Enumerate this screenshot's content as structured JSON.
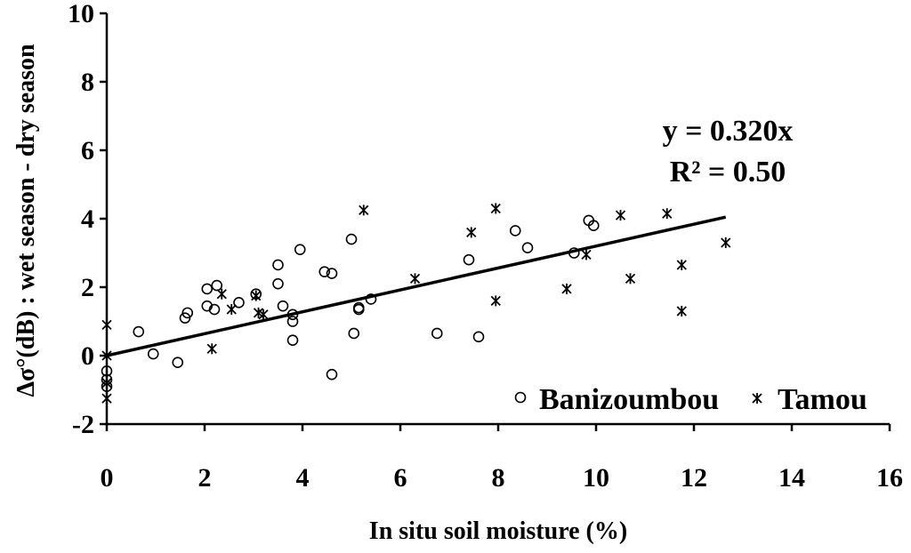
{
  "chart_data": {
    "type": "scatter",
    "title": "",
    "xlabel": "In situ soil moisture (%)",
    "ylabel": "Δσ°(dB) : wet season - dry season",
    "xlim": [
      0,
      16
    ],
    "ylim": [
      -2,
      10
    ],
    "x_ticks": [
      0,
      2,
      4,
      6,
      8,
      10,
      12,
      14,
      16
    ],
    "y_ticks": [
      -2,
      0,
      2,
      4,
      6,
      8,
      10
    ],
    "grid": false,
    "legend_position": "bottom-right",
    "series": [
      {
        "name": "Banizoumbou",
        "marker": "open-circle",
        "points": [
          [
            0,
            -0.45
          ],
          [
            0,
            -0.7
          ],
          [
            0,
            -0.9
          ],
          [
            0.65,
            0.7
          ],
          [
            0.95,
            0.05
          ],
          [
            1.45,
            -0.2
          ],
          [
            1.6,
            1.1
          ],
          [
            1.65,
            1.25
          ],
          [
            2.05,
            1.95
          ],
          [
            2.05,
            1.45
          ],
          [
            2.2,
            1.35
          ],
          [
            2.25,
            2.05
          ],
          [
            2.7,
            1.55
          ],
          [
            3.05,
            1.8
          ],
          [
            3.5,
            2.65
          ],
          [
            3.5,
            2.1
          ],
          [
            3.6,
            1.45
          ],
          [
            3.8,
            1.2
          ],
          [
            3.8,
            1.0
          ],
          [
            3.8,
            0.45
          ],
          [
            3.95,
            3.1
          ],
          [
            4.45,
            2.45
          ],
          [
            4.6,
            2.4
          ],
          [
            4.6,
            -0.55
          ],
          [
            5.0,
            3.4
          ],
          [
            5.05,
            0.65
          ],
          [
            5.15,
            1.4
          ],
          [
            5.15,
            1.35
          ],
          [
            5.4,
            1.65
          ],
          [
            6.75,
            0.65
          ],
          [
            7.4,
            2.8
          ],
          [
            7.6,
            0.55
          ],
          [
            8.35,
            3.65
          ],
          [
            8.6,
            3.15
          ],
          [
            9.55,
            3.0
          ],
          [
            9.85,
            3.95
          ],
          [
            9.95,
            3.8
          ]
        ]
      },
      {
        "name": "Tamou",
        "marker": "asterisk",
        "points": [
          [
            0,
            0.9
          ],
          [
            0,
            0.0
          ],
          [
            0,
            -0.8
          ],
          [
            0,
            -1.25
          ],
          [
            2.15,
            0.2
          ],
          [
            2.35,
            1.8
          ],
          [
            2.55,
            1.35
          ],
          [
            3.05,
            1.75
          ],
          [
            3.1,
            1.25
          ],
          [
            3.2,
            1.2
          ],
          [
            5.25,
            4.25
          ],
          [
            6.3,
            2.25
          ],
          [
            7.45,
            3.6
          ],
          [
            7.95,
            4.3
          ],
          [
            7.95,
            1.6
          ],
          [
            9.4,
            1.95
          ],
          [
            9.8,
            2.95
          ],
          [
            10.5,
            4.1
          ],
          [
            10.7,
            2.25
          ],
          [
            11.45,
            4.15
          ],
          [
            11.75,
            2.65
          ],
          [
            11.75,
            1.3
          ],
          [
            12.65,
            3.3
          ]
        ]
      }
    ],
    "trendline": {
      "slope": 0.32,
      "intercept": 0,
      "x_range": [
        0,
        12.65
      ]
    },
    "annotations": [
      "y = 0.320x",
      "R² = 0.50"
    ]
  }
}
